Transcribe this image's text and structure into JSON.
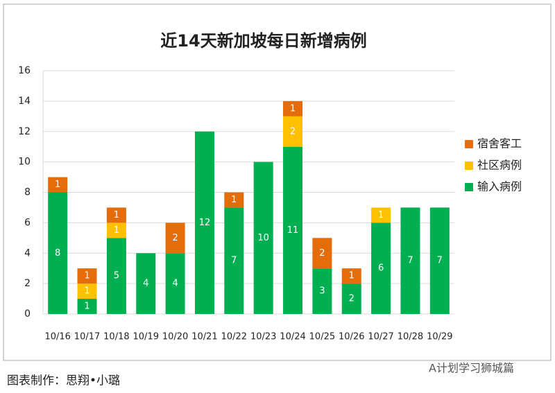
{
  "chart_data": {
    "type": "stacked_bar",
    "title": "近14天新加坡每日新增病例",
    "categories": [
      "10/16",
      "10/17",
      "10/18",
      "10/19",
      "10/20",
      "10/21",
      "10/22",
      "10/23",
      "10/24",
      "10/25",
      "10/26",
      "10/27",
      "10/28",
      "10/29"
    ],
    "series": [
      {
        "name": "输入病例",
        "color": "#00b050",
        "values": [
          8,
          1,
          5,
          4,
          4,
          12,
          7,
          10,
          11,
          3,
          2,
          6,
          7,
          7
        ]
      },
      {
        "name": "社区病例",
        "color": "#ffc000",
        "values": [
          0,
          1,
          1,
          0,
          0,
          0,
          0,
          0,
          2,
          0,
          0,
          1,
          0,
          0
        ]
      },
      {
        "name": "宿舍客工",
        "color": "#e46c0a",
        "values": [
          1,
          1,
          1,
          0,
          2,
          0,
          1,
          0,
          1,
          2,
          1,
          0,
          0,
          0
        ]
      }
    ],
    "ylim": [
      0,
      16
    ],
    "yticks": [
      0,
      2,
      4,
      6,
      8,
      10,
      12,
      14,
      16
    ],
    "grid": true,
    "legend": "right"
  },
  "footer": "图表制作：思翔•小璐",
  "watermark": "A计划学习狮城篇"
}
